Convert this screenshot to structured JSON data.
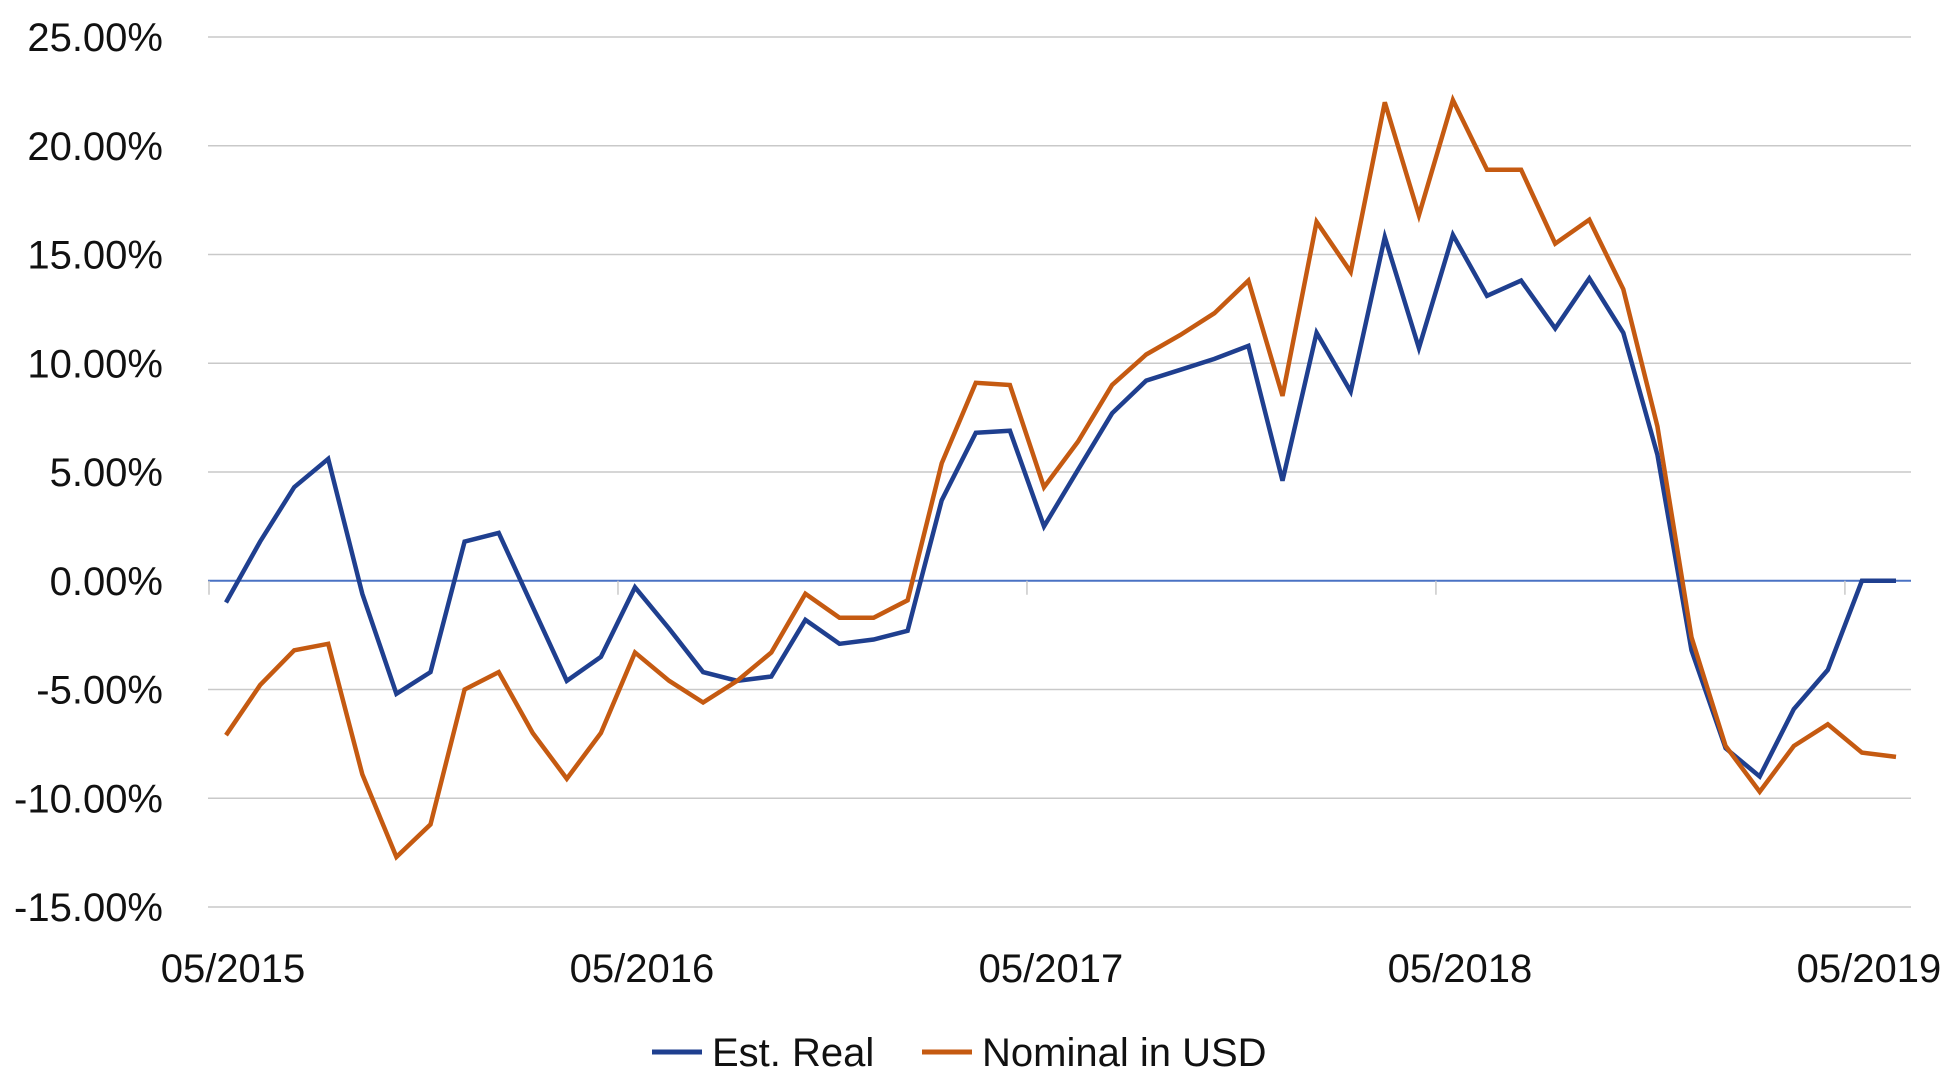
{
  "chart_data": {
    "type": "line",
    "x_tick_labels": [
      "05/2015",
      "05/2016",
      "05/2017",
      "05/2018",
      "05/2019"
    ],
    "y_tick_labels": [
      "25.00%",
      "20.00%",
      "15.00%",
      "10.00%",
      "5.00%",
      "0.00%",
      "-5.00%",
      "-10.00%",
      "-15.00%"
    ],
    "ylim": [
      -15,
      25
    ],
    "y_ticks": [
      25,
      20,
      15,
      10,
      5,
      0,
      -5,
      -10,
      -15
    ],
    "x": [
      "05/2015",
      "06/2015",
      "07/2015",
      "08/2015",
      "09/2015",
      "10/2015",
      "11/2015",
      "12/2015",
      "01/2016",
      "02/2016",
      "03/2016",
      "04/2016",
      "05/2016",
      "06/2016",
      "07/2016",
      "08/2016",
      "09/2016",
      "10/2016",
      "11/2016",
      "12/2016",
      "01/2017",
      "02/2017",
      "03/2017",
      "04/2017",
      "05/2017",
      "06/2017",
      "07/2017",
      "08/2017",
      "09/2017",
      "10/2017",
      "11/2017",
      "12/2017",
      "01/2018",
      "02/2018",
      "03/2018",
      "04/2018",
      "05/2018",
      "06/2018",
      "07/2018",
      "08/2018",
      "09/2018",
      "10/2018",
      "11/2018",
      "12/2018",
      "01/2019",
      "02/2019",
      "03/2019",
      "04/2019",
      "05/2019",
      "06/2019"
    ],
    "series": [
      {
        "name": "Est. Real",
        "color": "#1f3f8f",
        "values": [
          -1.0,
          1.8,
          4.3,
          5.6,
          -0.6,
          -5.2,
          -4.2,
          1.8,
          2.2,
          -1.2,
          -4.6,
          -3.5,
          -0.3,
          -2.2,
          -4.2,
          -4.6,
          -4.4,
          -1.8,
          -2.9,
          -2.7,
          -2.3,
          3.7,
          6.8,
          6.9,
          2.5,
          5.1,
          7.7,
          9.2,
          9.7,
          10.2,
          10.8,
          4.6,
          11.4,
          8.7,
          15.8,
          10.7,
          15.9,
          13.1,
          13.8,
          11.6,
          13.9,
          11.4,
          5.8,
          -3.2,
          -7.7,
          -9.0,
          -5.9,
          -4.1,
          0.0,
          0.0
        ]
      },
      {
        "name": "Nominal in USD",
        "color": "#c55a11",
        "values": [
          -7.1,
          -4.8,
          -3.2,
          -2.9,
          -8.9,
          -12.7,
          -11.2,
          -5.0,
          -4.2,
          -7.0,
          -9.1,
          -7.0,
          -3.3,
          -4.6,
          -5.6,
          -4.6,
          -3.3,
          -0.6,
          -1.7,
          -1.7,
          -0.9,
          5.4,
          9.1,
          9.0,
          4.3,
          6.4,
          9.0,
          10.4,
          11.3,
          12.3,
          13.8,
          8.5,
          16.5,
          14.2,
          22.0,
          16.8,
          22.1,
          18.9,
          18.9,
          15.5,
          16.6,
          13.4,
          7.1,
          -2.6,
          -7.6,
          -9.7,
          -7.6,
          -6.6,
          -7.9,
          -8.1
        ]
      }
    ],
    "grid": true,
    "legend": "bottom-center"
  }
}
